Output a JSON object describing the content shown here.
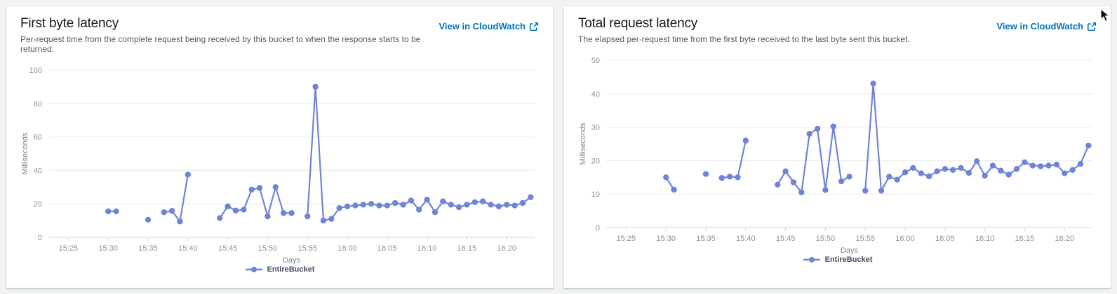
{
  "page": {
    "background": "#f1f2f2"
  },
  "colors": {
    "link": "#0073bb",
    "series_line": "#6f84d6",
    "grid": "#e9ebeb",
    "axis": "#cfd6d6",
    "tick_text": "#8a9296",
    "axis_title_text": "#7d868b"
  },
  "panels": [
    {
      "title": "First byte latency",
      "description": "Per-request time from the complete request being received by this bucket to when the response starts to be returned.",
      "link_label": "View in CloudWatch",
      "link_icon": "external-link",
      "legend_label": "EntireBucket"
    },
    {
      "title": "Total request latency",
      "description": "The elapsed per-request time from the first byte received to the last byte sent this bucket.",
      "link_label": "View in CloudWatch",
      "link_icon": "external-link",
      "legend_label": "EntireBucket"
    }
  ],
  "chart_data": [
    {
      "type": "line",
      "title": "First byte latency",
      "xlabel": "Days",
      "ylabel": "Milliseconds",
      "ylim": [
        0,
        100
      ],
      "yticks": [
        0,
        20,
        40,
        60,
        80,
        100
      ],
      "xticks": [
        "15:25",
        "15:30",
        "15:35",
        "15:40",
        "15:45",
        "15:50",
        "15:55",
        "16:00",
        "16:05",
        "16:10",
        "16:15",
        "16:20"
      ],
      "xlim_minutes": [
        922.5,
        983.5
      ],
      "grid": true,
      "legend_position": "bottom",
      "line_color": "#6f84d6",
      "gap_break_minutes": 1.5,
      "series": [
        {
          "name": "EntireBucket",
          "points": [
            [
              "15:30",
              15.5
            ],
            [
              "15:31",
              15.5
            ],
            [
              "15:35",
              10.5
            ],
            [
              "15:37",
              15
            ],
            [
              "15:38",
              15.8
            ],
            [
              "15:39",
              9.5
            ],
            [
              "15:40",
              37.5
            ],
            [
              "15:44",
              11.5
            ],
            [
              "15:45",
              18.5
            ],
            [
              "15:46",
              16
            ],
            [
              "15:47",
              16.5
            ],
            [
              "15:48",
              28.5
            ],
            [
              "15:49",
              29.5
            ],
            [
              "15:50",
              12.5
            ],
            [
              "15:51",
              30
            ],
            [
              "15:52",
              14.5
            ],
            [
              "15:53",
              14.5
            ],
            [
              "15:55",
              12.5
            ],
            [
              "15:56",
              90
            ],
            [
              "15:57",
              10
            ],
            [
              "15:58",
              11
            ],
            [
              "15:59",
              17.5
            ],
            [
              "16:00",
              18.5
            ],
            [
              "16:01",
              19
            ],
            [
              "16:02",
              19.5
            ],
            [
              "16:03",
              20
            ],
            [
              "16:04",
              19
            ],
            [
              "16:05",
              19
            ],
            [
              "16:06",
              20.5
            ],
            [
              "16:07",
              19.5
            ],
            [
              "16:08",
              22
            ],
            [
              "16:09",
              16.5
            ],
            [
              "16:10",
              22.5
            ],
            [
              "16:11",
              15
            ],
            [
              "16:12",
              21.5
            ],
            [
              "16:13",
              19.5
            ],
            [
              "16:14",
              18
            ],
            [
              "16:15",
              19.5
            ],
            [
              "16:16",
              21
            ],
            [
              "16:17",
              21.5
            ],
            [
              "16:18",
              19.5
            ],
            [
              "16:19",
              18.5
            ],
            [
              "16:20",
              19.5
            ],
            [
              "16:21",
              19
            ],
            [
              "16:22",
              20.5
            ],
            [
              "16:23",
              24
            ]
          ]
        }
      ]
    },
    {
      "type": "line",
      "title": "Total request latency",
      "xlabel": "Days",
      "ylabel": "Milliseconds",
      "ylim": [
        0,
        50
      ],
      "yticks": [
        0,
        10,
        20,
        30,
        40,
        50
      ],
      "xticks": [
        "15:25",
        "15:30",
        "15:35",
        "15:40",
        "15:45",
        "15:50",
        "15:55",
        "16:00",
        "16:05",
        "16:10",
        "16:15",
        "16:20"
      ],
      "xlim_minutes": [
        922.5,
        983.5
      ],
      "grid": true,
      "legend_position": "bottom",
      "line_color": "#6f84d6",
      "gap_break_minutes": 1.5,
      "series": [
        {
          "name": "EntireBucket",
          "points": [
            [
              "15:30",
              15
            ],
            [
              "15:31",
              11.3
            ],
            [
              "15:35",
              16
            ],
            [
              "15:37",
              14.8
            ],
            [
              "15:38",
              15.2
            ],
            [
              "15:39",
              15
            ],
            [
              "15:40",
              26
            ],
            [
              "15:44",
              12.8
            ],
            [
              "15:45",
              16.8
            ],
            [
              "15:46",
              13.5
            ],
            [
              "15:47",
              10.5
            ],
            [
              "15:48",
              28
            ],
            [
              "15:49",
              29.5
            ],
            [
              "15:50",
              11.2
            ],
            [
              "15:51",
              30.2
            ],
            [
              "15:52",
              13.8
            ],
            [
              "15:53",
              15.2
            ],
            [
              "15:55",
              11
            ],
            [
              "15:56",
              43
            ],
            [
              "15:57",
              11
            ],
            [
              "15:58",
              15.2
            ],
            [
              "15:59",
              14.3
            ],
            [
              "16:00",
              16.5
            ],
            [
              "16:01",
              17.8
            ],
            [
              "16:02",
              16.2
            ],
            [
              "16:03",
              15.3
            ],
            [
              "16:04",
              16.8
            ],
            [
              "16:05",
              17.5
            ],
            [
              "16:06",
              17.2
            ],
            [
              "16:07",
              17.8
            ],
            [
              "16:08",
              16.3
            ],
            [
              "16:09",
              19.8
            ],
            [
              "16:10",
              15.5
            ],
            [
              "16:11",
              18.5
            ],
            [
              "16:12",
              17
            ],
            [
              "16:13",
              15.8
            ],
            [
              "16:14",
              17.5
            ],
            [
              "16:15",
              19.5
            ],
            [
              "16:16",
              18.5
            ],
            [
              "16:17",
              18.3
            ],
            [
              "16:18",
              18.5
            ],
            [
              "16:19",
              18.8
            ],
            [
              "16:20",
              16.2
            ],
            [
              "16:21",
              17.2
            ],
            [
              "16:22",
              19
            ],
            [
              "16:23",
              24.5
            ]
          ]
        }
      ]
    }
  ]
}
